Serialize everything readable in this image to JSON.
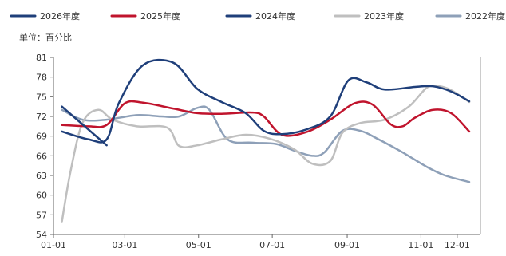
{
  "chart_data": {
    "type": "line",
    "unit_label": "单位：百分比",
    "x_ticks": [
      "01-01",
      "03-01",
      "05-01",
      "07-01",
      "09-01",
      "11-01",
      "12-01"
    ],
    "x_tick_doy": [
      1,
      60,
      121,
      182,
      244,
      305,
      335
    ],
    "ylim": [
      54,
      81
    ],
    "y_ticks": [
      54,
      57,
      60,
      63,
      66,
      69,
      72,
      75,
      78,
      81
    ],
    "grid": false,
    "legend_position": "top",
    "series": [
      {
        "name": "2026年度",
        "color": "#1f3f7a",
        "points": [
          [
            8,
            73.5
          ],
          [
            45,
            67.6
          ]
        ]
      },
      {
        "name": "2025年度",
        "color": "#c0142d",
        "points": [
          [
            8,
            70.7
          ],
          [
            30,
            70.5
          ],
          [
            45,
            70.7
          ],
          [
            60,
            74.0
          ],
          [
            75,
            74.1
          ],
          [
            100,
            73.2
          ],
          [
            120,
            72.5
          ],
          [
            140,
            72.4
          ],
          [
            165,
            72.6
          ],
          [
            175,
            72.0
          ],
          [
            190,
            69.2
          ],
          [
            210,
            69.6
          ],
          [
            230,
            71.5
          ],
          [
            250,
            74.0
          ],
          [
            265,
            73.8
          ],
          [
            280,
            70.8
          ],
          [
            290,
            70.5
          ],
          [
            300,
            71.8
          ],
          [
            315,
            73.0
          ],
          [
            330,
            72.5
          ],
          [
            345,
            69.7
          ]
        ]
      },
      {
        "name": "2024年度",
        "color": "#1f3f7a",
        "points": [
          [
            8,
            69.7
          ],
          [
            30,
            68.5
          ],
          [
            45,
            68.5
          ],
          [
            55,
            74.0
          ],
          [
            75,
            79.8
          ],
          [
            100,
            80.2
          ],
          [
            120,
            76.2
          ],
          [
            140,
            74.2
          ],
          [
            160,
            72.5
          ],
          [
            175,
            69.8
          ],
          [
            190,
            69.3
          ],
          [
            210,
            70.0
          ],
          [
            230,
            72.0
          ],
          [
            245,
            77.5
          ],
          [
            260,
            77.2
          ],
          [
            275,
            76.1
          ],
          [
            300,
            76.5
          ],
          [
            315,
            76.6
          ],
          [
            330,
            75.8
          ],
          [
            345,
            74.3
          ]
        ]
      },
      {
        "name": "2023年度",
        "color": "#bfbfbf",
        "points": [
          [
            8,
            56.0
          ],
          [
            15,
            63.5
          ],
          [
            25,
            71.0
          ],
          [
            38,
            73.0
          ],
          [
            50,
            71.5
          ],
          [
            70,
            70.5
          ],
          [
            95,
            70.3
          ],
          [
            105,
            67.5
          ],
          [
            120,
            67.6
          ],
          [
            140,
            68.5
          ],
          [
            160,
            69.2
          ],
          [
            180,
            68.6
          ],
          [
            200,
            67.0
          ],
          [
            215,
            64.8
          ],
          [
            230,
            65.2
          ],
          [
            240,
            69.5
          ],
          [
            255,
            71.0
          ],
          [
            275,
            71.5
          ],
          [
            295,
            73.5
          ],
          [
            310,
            76.4
          ],
          [
            320,
            76.6
          ],
          [
            330,
            76.0
          ],
          [
            345,
            74.2
          ]
        ]
      },
      {
        "name": "2022年度",
        "color": "#8ea0b8",
        "points": [
          [
            8,
            73.0
          ],
          [
            25,
            71.5
          ],
          [
            45,
            71.5
          ],
          [
            70,
            72.2
          ],
          [
            90,
            72.0
          ],
          [
            105,
            72.0
          ],
          [
            120,
            73.3
          ],
          [
            130,
            73.0
          ],
          [
            145,
            68.5
          ],
          [
            165,
            68.0
          ],
          [
            185,
            67.8
          ],
          [
            200,
            66.8
          ],
          [
            215,
            66.0
          ],
          [
            225,
            66.5
          ],
          [
            240,
            69.8
          ],
          [
            255,
            69.8
          ],
          [
            270,
            68.5
          ],
          [
            290,
            66.5
          ],
          [
            310,
            64.3
          ],
          [
            325,
            63.0
          ],
          [
            345,
            62.0
          ]
        ]
      }
    ]
  }
}
